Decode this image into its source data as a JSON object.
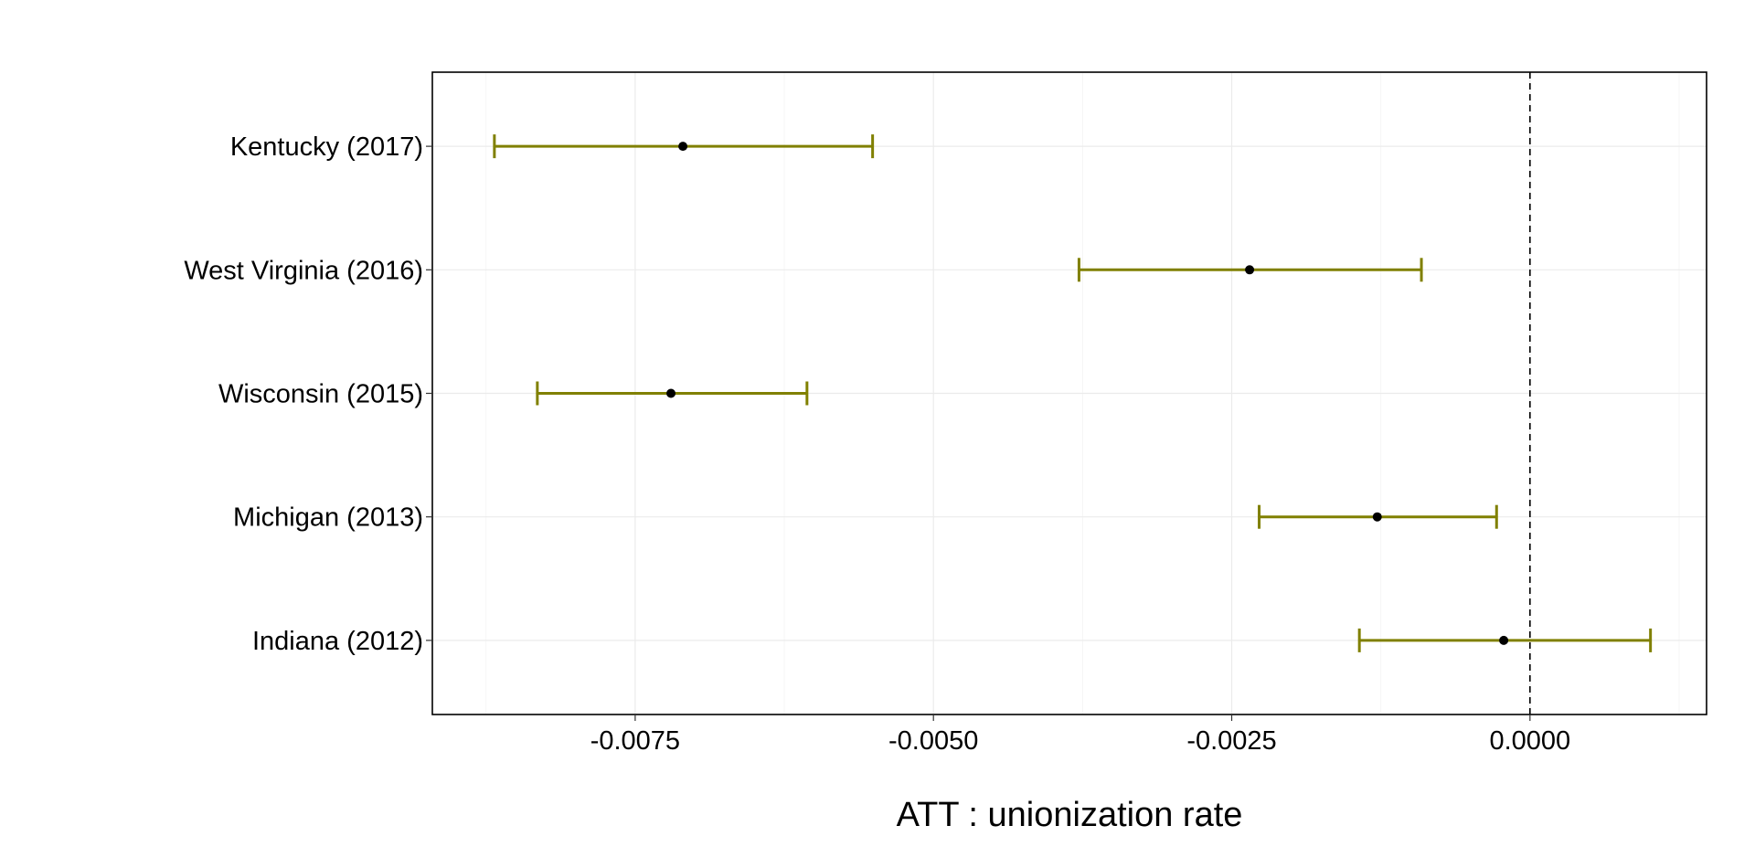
{
  "chart_data": {
    "type": "errorbar",
    "orientation": "horizontal",
    "xlabel": "ATT : unionization rate",
    "ylabel": "",
    "title": "",
    "xlim": [
      -0.0092,
      0.00148
    ],
    "xticks": [
      -0.0075,
      -0.005,
      -0.0025,
      0.0
    ],
    "xtick_labels": [
      "-0.0075",
      "-0.0050",
      "-0.0025",
      "0.0000"
    ],
    "reference_line_x": 0.0,
    "grid": true,
    "colors": {
      "errorbar": "#808000",
      "point": "#000000"
    },
    "categories": [
      "Kentucky (2017)",
      "West Virginia (2016)",
      "Wisconsin (2015)",
      "Michigan (2013)",
      "Indiana (2012)"
    ],
    "estimates": [
      {
        "label": "Kentucky (2017)",
        "estimate": -0.0071,
        "lower": -0.00868,
        "upper": -0.00551
      },
      {
        "label": "West Virginia (2016)",
        "estimate": -0.00235,
        "lower": -0.00378,
        "upper": -0.00091
      },
      {
        "label": "Wisconsin (2015)",
        "estimate": -0.0072,
        "lower": -0.00832,
        "upper": -0.00606
      },
      {
        "label": "Michigan (2013)",
        "estimate": -0.00128,
        "lower": -0.00227,
        "upper": -0.00028
      },
      {
        "label": "Indiana (2012)",
        "estimate": -0.00022,
        "lower": -0.00143,
        "upper": 0.00101
      }
    ]
  }
}
